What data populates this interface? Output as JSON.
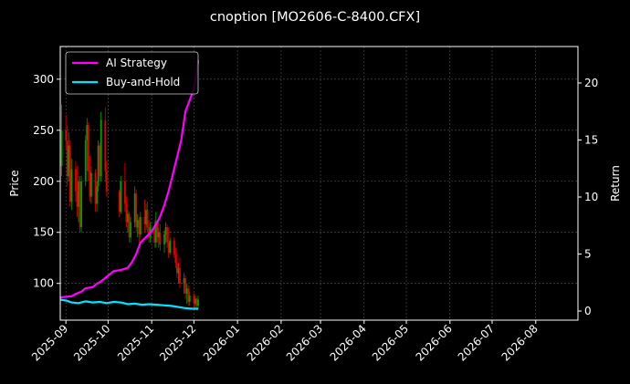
{
  "chart_data": {
    "type": "line",
    "title": "cnoption [MO2606-C-8400.CFX]",
    "ylabel": "Price",
    "y2label": "Return",
    "xlim": [
      "2025-08-28",
      "2026-08-31"
    ],
    "ylim": [
      64,
      332
    ],
    "y2lim": [
      -0.8,
      23.2
    ],
    "grid": true,
    "legend_position": "top-left",
    "x_ticks": [
      "2025-09",
      "2025-10",
      "2025-11",
      "2025-12",
      "2026-01",
      "2026-02",
      "2026-03",
      "2026-04",
      "2026-05",
      "2026-06",
      "2026-07",
      "2026-08"
    ],
    "x_tick_dates": [
      "2025-09-01",
      "2025-10-01",
      "2025-11-01",
      "2025-12-01",
      "2026-01-01",
      "2026-02-01",
      "2026-03-01",
      "2026-04-01",
      "2026-05-01",
      "2026-06-01",
      "2026-07-01",
      "2026-08-01"
    ],
    "y_ticks": [
      100,
      150,
      200,
      250,
      300
    ],
    "y2_ticks": [
      0,
      5,
      10,
      15,
      20
    ],
    "candles": [
      {
        "date": "2025-08-29",
        "open": 215,
        "high": 275,
        "low": 205,
        "close": 250,
        "dir": "up"
      },
      {
        "date": "2025-09-01",
        "open": 250,
        "high": 265,
        "low": 230,
        "close": 240,
        "dir": "down"
      },
      {
        "date": "2025-09-02",
        "open": 240,
        "high": 255,
        "low": 195,
        "close": 205,
        "dir": "down"
      },
      {
        "date": "2025-09-03",
        "open": 205,
        "high": 248,
        "low": 200,
        "close": 235,
        "dir": "up"
      },
      {
        "date": "2025-09-04",
        "open": 235,
        "high": 240,
        "low": 175,
        "close": 180,
        "dir": "down"
      },
      {
        "date": "2025-09-05",
        "open": 180,
        "high": 222,
        "low": 172,
        "close": 212,
        "dir": "up"
      },
      {
        "date": "2025-09-08",
        "open": 212,
        "high": 220,
        "low": 180,
        "close": 190,
        "dir": "down"
      },
      {
        "date": "2025-09-09",
        "open": 190,
        "high": 215,
        "low": 165,
        "close": 175,
        "dir": "down"
      },
      {
        "date": "2025-09-10",
        "open": 175,
        "high": 205,
        "low": 160,
        "close": 200,
        "dir": "up"
      },
      {
        "date": "2025-09-11",
        "open": 200,
        "high": 205,
        "low": 150,
        "close": 155,
        "dir": "down"
      },
      {
        "date": "2025-09-12",
        "open": 155,
        "high": 205,
        "low": 150,
        "close": 200,
        "dir": "up"
      },
      {
        "date": "2025-09-15",
        "open": 200,
        "high": 245,
        "low": 195,
        "close": 240,
        "dir": "up"
      },
      {
        "date": "2025-09-16",
        "open": 240,
        "high": 262,
        "low": 210,
        "close": 255,
        "dir": "up"
      },
      {
        "date": "2025-09-17",
        "open": 255,
        "high": 258,
        "low": 200,
        "close": 210,
        "dir": "down"
      },
      {
        "date": "2025-09-18",
        "open": 210,
        "high": 225,
        "low": 180,
        "close": 185,
        "dir": "down"
      },
      {
        "date": "2025-09-19",
        "open": 185,
        "high": 215,
        "low": 178,
        "close": 208,
        "dir": "up"
      },
      {
        "date": "2025-09-22",
        "open": 208,
        "high": 212,
        "low": 170,
        "close": 178,
        "dir": "down"
      },
      {
        "date": "2025-09-23",
        "open": 178,
        "high": 200,
        "low": 170,
        "close": 195,
        "dir": "up"
      },
      {
        "date": "2025-09-24",
        "open": 195,
        "high": 240,
        "low": 190,
        "close": 235,
        "dir": "up"
      },
      {
        "date": "2025-09-25",
        "open": 235,
        "high": 238,
        "low": 200,
        "close": 205,
        "dir": "down"
      },
      {
        "date": "2025-09-26",
        "open": 205,
        "high": 268,
        "low": 200,
        "close": 260,
        "dir": "up"
      },
      {
        "date": "2025-09-29",
        "open": 260,
        "high": 272,
        "low": 200,
        "close": 210,
        "dir": "down"
      },
      {
        "date": "2025-09-30",
        "open": 210,
        "high": 220,
        "low": 185,
        "close": 190,
        "dir": "down"
      },
      {
        "date": "2025-10-09",
        "open": 190,
        "high": 192,
        "low": 165,
        "close": 170,
        "dir": "down"
      },
      {
        "date": "2025-10-10",
        "open": 170,
        "high": 205,
        "low": 168,
        "close": 200,
        "dir": "up"
      },
      {
        "date": "2025-10-13",
        "open": 200,
        "high": 218,
        "low": 170,
        "close": 178,
        "dir": "down"
      },
      {
        "date": "2025-10-14",
        "open": 178,
        "high": 185,
        "low": 155,
        "close": 160,
        "dir": "down"
      },
      {
        "date": "2025-10-15",
        "open": 160,
        "high": 172,
        "low": 150,
        "close": 168,
        "dir": "up"
      },
      {
        "date": "2025-10-16",
        "open": 168,
        "high": 170,
        "low": 140,
        "close": 145,
        "dir": "down"
      },
      {
        "date": "2025-10-17",
        "open": 145,
        "high": 165,
        "low": 140,
        "close": 160,
        "dir": "up"
      },
      {
        "date": "2025-10-20",
        "open": 160,
        "high": 195,
        "low": 155,
        "close": 188,
        "dir": "up"
      },
      {
        "date": "2025-10-21",
        "open": 188,
        "high": 192,
        "low": 150,
        "close": 155,
        "dir": "down"
      },
      {
        "date": "2025-10-22",
        "open": 155,
        "high": 168,
        "low": 145,
        "close": 162,
        "dir": "up"
      },
      {
        "date": "2025-10-23",
        "open": 162,
        "high": 165,
        "low": 140,
        "close": 148,
        "dir": "down"
      },
      {
        "date": "2025-10-24",
        "open": 148,
        "high": 170,
        "low": 145,
        "close": 165,
        "dir": "up"
      },
      {
        "date": "2025-10-27",
        "open": 165,
        "high": 182,
        "low": 150,
        "close": 158,
        "dir": "down"
      },
      {
        "date": "2025-10-28",
        "open": 158,
        "high": 178,
        "low": 152,
        "close": 172,
        "dir": "up"
      },
      {
        "date": "2025-10-29",
        "open": 172,
        "high": 180,
        "low": 150,
        "close": 155,
        "dir": "down"
      },
      {
        "date": "2025-10-30",
        "open": 155,
        "high": 162,
        "low": 140,
        "close": 145,
        "dir": "down"
      },
      {
        "date": "2025-10-31",
        "open": 145,
        "high": 160,
        "low": 140,
        "close": 155,
        "dir": "up"
      },
      {
        "date": "2025-11-03",
        "open": 155,
        "high": 162,
        "low": 135,
        "close": 140,
        "dir": "down"
      },
      {
        "date": "2025-11-04",
        "open": 140,
        "high": 170,
        "low": 135,
        "close": 160,
        "dir": "up"
      },
      {
        "date": "2025-11-05",
        "open": 160,
        "high": 162,
        "low": 140,
        "close": 145,
        "dir": "down"
      },
      {
        "date": "2025-11-06",
        "open": 145,
        "high": 155,
        "low": 135,
        "close": 150,
        "dir": "up"
      },
      {
        "date": "2025-11-07",
        "open": 150,
        "high": 158,
        "low": 132,
        "close": 138,
        "dir": "down"
      },
      {
        "date": "2025-11-10",
        "open": 138,
        "high": 152,
        "low": 130,
        "close": 148,
        "dir": "up"
      },
      {
        "date": "2025-11-11",
        "open": 148,
        "high": 160,
        "low": 140,
        "close": 155,
        "dir": "up"
      },
      {
        "date": "2025-11-12",
        "open": 155,
        "high": 158,
        "low": 135,
        "close": 140,
        "dir": "down"
      },
      {
        "date": "2025-11-13",
        "open": 140,
        "high": 155,
        "low": 125,
        "close": 130,
        "dir": "down"
      },
      {
        "date": "2025-11-14",
        "open": 130,
        "high": 145,
        "low": 128,
        "close": 142,
        "dir": "up"
      },
      {
        "date": "2025-11-17",
        "open": 142,
        "high": 145,
        "low": 125,
        "close": 128,
        "dir": "down"
      },
      {
        "date": "2025-11-18",
        "open": 128,
        "high": 135,
        "low": 115,
        "close": 120,
        "dir": "down"
      },
      {
        "date": "2025-11-19",
        "open": 120,
        "high": 130,
        "low": 105,
        "close": 110,
        "dir": "down"
      },
      {
        "date": "2025-11-20",
        "open": 110,
        "high": 120,
        "low": 100,
        "close": 115,
        "dir": "up"
      },
      {
        "date": "2025-11-21",
        "open": 115,
        "high": 125,
        "low": 95,
        "close": 100,
        "dir": "down"
      },
      {
        "date": "2025-11-24",
        "open": 100,
        "high": 110,
        "low": 90,
        "close": 105,
        "dir": "up"
      },
      {
        "date": "2025-11-25",
        "open": 105,
        "high": 108,
        "low": 85,
        "close": 90,
        "dir": "down"
      },
      {
        "date": "2025-11-26",
        "open": 90,
        "high": 100,
        "low": 80,
        "close": 95,
        "dir": "up"
      },
      {
        "date": "2025-11-27",
        "open": 95,
        "high": 98,
        "low": 78,
        "close": 82,
        "dir": "down"
      },
      {
        "date": "2025-11-28",
        "open": 82,
        "high": 92,
        "low": 78,
        "close": 88,
        "dir": "up"
      },
      {
        "date": "2025-12-01",
        "open": 88,
        "high": 90,
        "low": 76,
        "close": 80,
        "dir": "down"
      },
      {
        "date": "2025-12-02",
        "open": 80,
        "high": 88,
        "low": 76,
        "close": 85,
        "dir": "up"
      },
      {
        "date": "2025-12-03",
        "open": 85,
        "high": 86,
        "low": 75,
        "close": 78,
        "dir": "down"
      },
      {
        "date": "2025-12-04",
        "open": 78,
        "high": 88,
        "low": 76,
        "close": 84,
        "dir": "up"
      }
    ],
    "series": [
      {
        "name": "AI Strategy",
        "color": "#ff00ff",
        "axis": "right",
        "points": [
          [
            "2025-08-28",
            1.2
          ],
          [
            "2025-09-05",
            1.3
          ],
          [
            "2025-09-08",
            1.5
          ],
          [
            "2025-09-12",
            1.7
          ],
          [
            "2025-09-15",
            2.0
          ],
          [
            "2025-09-20",
            2.1
          ],
          [
            "2025-09-23",
            2.4
          ],
          [
            "2025-09-26",
            2.6
          ],
          [
            "2025-09-30",
            3.0
          ],
          [
            "2025-10-05",
            3.5
          ],
          [
            "2025-10-10",
            3.6
          ],
          [
            "2025-10-15",
            3.8
          ],
          [
            "2025-10-18",
            4.3
          ],
          [
            "2025-10-21",
            5.0
          ],
          [
            "2025-10-24",
            6.0
          ],
          [
            "2025-10-28",
            6.5
          ],
          [
            "2025-11-01",
            7.0
          ],
          [
            "2025-11-04",
            7.6
          ],
          [
            "2025-11-07",
            8.3
          ],
          [
            "2025-11-10",
            9.3
          ],
          [
            "2025-11-13",
            10.5
          ],
          [
            "2025-11-16",
            12.0
          ],
          [
            "2025-11-19",
            13.5
          ],
          [
            "2025-11-22",
            15.0
          ],
          [
            "2025-11-25",
            17.5
          ],
          [
            "2025-11-28",
            18.5
          ],
          [
            "2025-12-01",
            19.5
          ],
          [
            "2025-12-03",
            21.0
          ],
          [
            "2025-12-04",
            22.0
          ]
        ]
      },
      {
        "name": "Buy-and-Hold",
        "color": "#00e5ff",
        "axis": "right",
        "points": [
          [
            "2025-08-28",
            1.0
          ],
          [
            "2025-09-02",
            0.9
          ],
          [
            "2025-09-05",
            0.75
          ],
          [
            "2025-09-10",
            0.7
          ],
          [
            "2025-09-15",
            0.85
          ],
          [
            "2025-09-20",
            0.75
          ],
          [
            "2025-09-25",
            0.8
          ],
          [
            "2025-09-30",
            0.7
          ],
          [
            "2025-10-05",
            0.8
          ],
          [
            "2025-10-10",
            0.75
          ],
          [
            "2025-10-15",
            0.6
          ],
          [
            "2025-10-20",
            0.65
          ],
          [
            "2025-10-25",
            0.55
          ],
          [
            "2025-10-30",
            0.6
          ],
          [
            "2025-11-05",
            0.55
          ],
          [
            "2025-11-10",
            0.5
          ],
          [
            "2025-11-15",
            0.45
          ],
          [
            "2025-11-20",
            0.35
          ],
          [
            "2025-11-25",
            0.25
          ],
          [
            "2025-11-30",
            0.2
          ],
          [
            "2025-12-04",
            0.2
          ]
        ]
      }
    ],
    "candle_colors": {
      "up": "#00a000",
      "down": "#e00000"
    }
  }
}
